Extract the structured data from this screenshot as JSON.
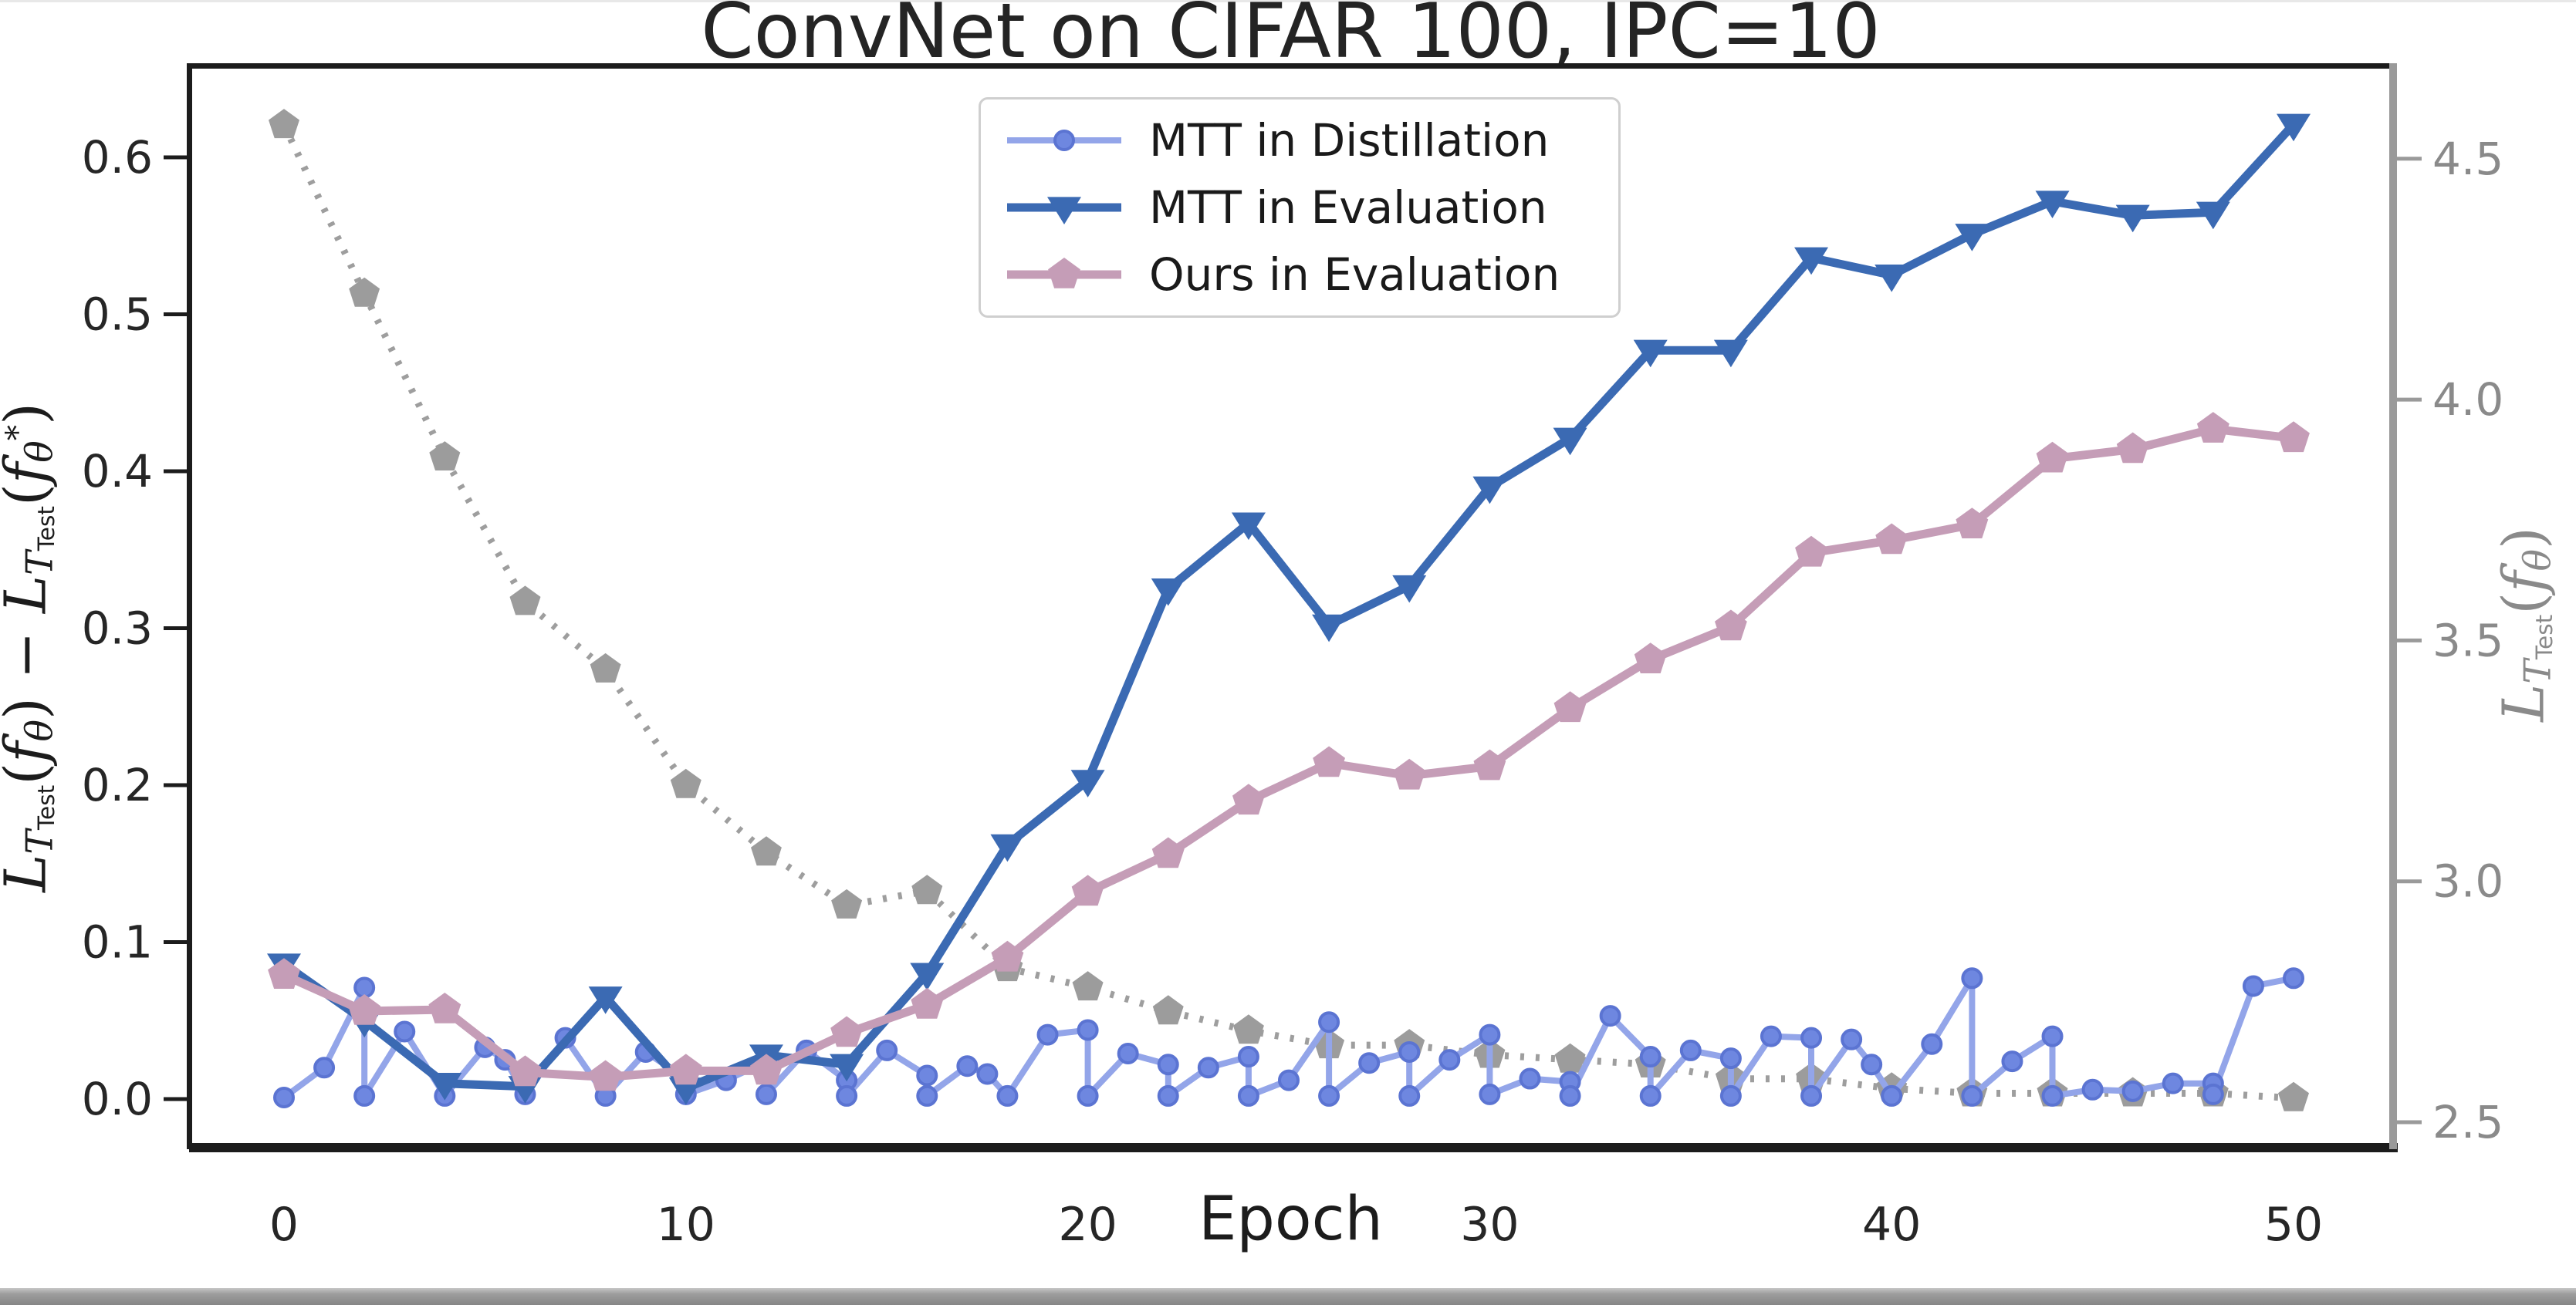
{
  "window": {
    "top_border_color": "#e8e8e8",
    "bottom_bar_colors": [
      "#c7c7c7",
      "#868686"
    ]
  },
  "chart_data": {
    "type": "line",
    "title": "ConvNet on CIFAR 100, IPC=10",
    "xlabel": "Epoch",
    "grid": false,
    "legend_position": "upper center",
    "x_ticks": {
      "values": [
        0,
        10,
        20,
        30,
        40,
        50
      ],
      "labels": [
        "0",
        "10",
        "20",
        "30",
        "40",
        "50"
      ]
    },
    "left_axis": {
      "label": "L_T_Test(f_theta) - L_T_Test(f_theta_star)",
      "tick_values": [
        0.0,
        0.1,
        0.2,
        0.3,
        0.4,
        0.5,
        0.6
      ],
      "tick_labels": [
        "0.0",
        "0.1",
        "0.2",
        "0.3",
        "0.4",
        "0.5",
        "0.6"
      ],
      "range": [
        -0.032,
        0.659
      ],
      "color": "#1c1c1c"
    },
    "right_axis": {
      "label": "L_T_Test(f_theta)",
      "tick_values": [
        2.5,
        3.0,
        3.5,
        4.0,
        4.5
      ],
      "tick_labels": [
        "2.5",
        "3.0",
        "3.5",
        "4.0",
        "4.5"
      ],
      "range": [
        2.444,
        4.694
      ],
      "color": "#8a8a8a"
    },
    "xlim": [
      -2.36,
      52.46
    ],
    "series": [
      {
        "name": "MTT in Distillation",
        "axis": "left",
        "draw_order": 1,
        "in_legend": true,
        "color": "#93a5e9",
        "line_width": 8,
        "dash": null,
        "marker": "circle",
        "marker_fill": "#6e87e0",
        "marker_edge": "#5b74d2",
        "marker_size": 12,
        "points": [
          [
            0,
            0.001
          ],
          [
            1,
            0.02
          ],
          [
            2,
            0.071
          ],
          [
            2,
            0.002
          ],
          [
            3,
            0.043
          ],
          [
            4,
            0.002
          ],
          [
            5,
            0.033
          ],
          [
            5.5,
            0.025
          ],
          [
            6,
            0.003
          ],
          [
            7,
            0.039
          ],
          [
            8,
            0.002
          ],
          [
            9,
            0.03
          ],
          [
            10,
            0.013
          ],
          [
            10,
            0.003
          ],
          [
            11,
            0.012
          ],
          [
            12,
            0.024
          ],
          [
            12,
            0.003
          ],
          [
            13,
            0.031
          ],
          [
            14,
            0.012
          ],
          [
            14,
            0.002
          ],
          [
            15,
            0.031
          ],
          [
            16,
            0.015
          ],
          [
            16,
            0.002
          ],
          [
            17,
            0.021
          ],
          [
            17.5,
            0.016
          ],
          [
            18,
            0.002
          ],
          [
            19,
            0.041
          ],
          [
            20,
            0.044
          ],
          [
            20,
            0.002
          ],
          [
            21,
            0.029
          ],
          [
            22,
            0.022
          ],
          [
            22,
            0.002
          ],
          [
            23,
            0.02
          ],
          [
            24,
            0.027
          ],
          [
            24,
            0.002
          ],
          [
            25,
            0.012
          ],
          [
            26,
            0.049
          ],
          [
            26,
            0.002
          ],
          [
            27,
            0.023
          ],
          [
            28,
            0.03
          ],
          [
            28,
            0.002
          ],
          [
            29,
            0.025
          ],
          [
            30,
            0.041
          ],
          [
            30,
            0.003
          ],
          [
            31,
            0.013
          ],
          [
            32,
            0.011
          ],
          [
            32,
            0.002
          ],
          [
            33,
            0.053
          ],
          [
            34,
            0.027
          ],
          [
            34,
            0.002
          ],
          [
            35,
            0.031
          ],
          [
            36,
            0.026
          ],
          [
            36,
            0.002
          ],
          [
            37,
            0.04
          ],
          [
            38,
            0.039
          ],
          [
            38,
            0.002
          ],
          [
            39,
            0.038
          ],
          [
            39.5,
            0.022
          ],
          [
            40,
            0.002
          ],
          [
            41,
            0.035
          ],
          [
            42,
            0.077
          ],
          [
            42,
            0.002
          ],
          [
            43,
            0.024
          ],
          [
            44,
            0.04
          ],
          [
            44,
            0.002
          ],
          [
            45,
            0.006
          ],
          [
            46,
            0.005
          ],
          [
            47,
            0.01
          ],
          [
            48,
            0.01
          ],
          [
            48,
            0.003
          ],
          [
            49,
            0.072
          ],
          [
            50,
            0.077
          ]
        ]
      },
      {
        "name": "MTT in Evaluation",
        "axis": "left",
        "draw_order": 2,
        "in_legend": true,
        "color": "#3b6ab3",
        "line_width": 11,
        "dash": null,
        "marker": "triangle-down",
        "marker_fill": "#3b6ab3",
        "marker_edge": "#3b6ab3",
        "marker_size": 22,
        "x": [
          0,
          2,
          4,
          6,
          8,
          10,
          12,
          14,
          16,
          18,
          20,
          22,
          24,
          26,
          28,
          30,
          32,
          34,
          36,
          38,
          40,
          42,
          44,
          46,
          48,
          50
        ],
        "y": [
          0.086,
          0.05,
          0.01,
          0.008,
          0.065,
          0.007,
          0.028,
          0.022,
          0.08,
          0.162,
          0.203,
          0.325,
          0.367,
          0.302,
          0.327,
          0.39,
          0.421,
          0.477,
          0.477,
          0.536,
          0.525,
          0.551,
          0.572,
          0.563,
          0.565,
          0.621
        ]
      },
      {
        "name": "Ours in Evaluation",
        "axis": "left",
        "draw_order": 3,
        "in_legend": true,
        "color": "#c59db7",
        "line_width": 11,
        "dash": null,
        "marker": "pentagon",
        "marker_fill": "#c59db7",
        "marker_edge": "#c59db7",
        "marker_size": 22,
        "x": [
          0,
          2,
          4,
          6,
          8,
          10,
          12,
          14,
          16,
          18,
          20,
          22,
          24,
          26,
          28,
          30,
          32,
          34,
          36,
          38,
          40,
          42,
          44,
          46,
          48,
          50
        ],
        "y": [
          0.079,
          0.056,
          0.057,
          0.017,
          0.014,
          0.018,
          0.018,
          0.042,
          0.06,
          0.09,
          0.132,
          0.156,
          0.19,
          0.214,
          0.206,
          0.212,
          0.249,
          0.28,
          0.301,
          0.348,
          0.356,
          0.366,
          0.408,
          0.414,
          0.427,
          0.421
        ]
      },
      {
        "name": "L_T_Test(f_theta) test loss",
        "axis": "right",
        "draw_order": 0,
        "in_legend": false,
        "color": "#9e9e9e",
        "line_width": 9,
        "dash": "5 15",
        "marker": "pentagon",
        "marker_fill": "#9c9c9c",
        "marker_edge": "#9c9c9c",
        "marker_size": 21,
        "x": [
          0,
          2,
          4,
          6,
          8,
          10,
          12,
          14,
          16,
          18,
          20,
          22,
          24,
          26,
          28,
          30,
          32,
          34,
          36,
          38,
          40,
          42,
          44,
          46,
          48,
          50
        ],
        "y": [
          4.57,
          4.22,
          3.88,
          3.58,
          3.44,
          3.2,
          3.06,
          2.95,
          2.98,
          2.82,
          2.78,
          2.73,
          2.69,
          2.66,
          2.66,
          2.64,
          2.63,
          2.62,
          2.59,
          2.59,
          2.57,
          2.56,
          2.56,
          2.56,
          2.56,
          2.55
        ]
      }
    ]
  },
  "legend": {
    "entries": [
      {
        "label": "MTT in Distillation",
        "series": "MTT in Distillation"
      },
      {
        "label": "MTT in Evaluation",
        "series": "MTT in Evaluation"
      },
      {
        "label": "Ours in Evaluation",
        "series": "Ours in Evaluation"
      }
    ]
  },
  "labels": {
    "ylabel_left": {
      "segments": [
        {
          "t": "L",
          "s": "it"
        },
        {
          "t": "T",
          "s": "cal"
        },
        {
          "t": "Test",
          "s": "subsub"
        },
        {
          "t": "(",
          "s": "rm"
        },
        {
          "t": "f",
          "s": "it"
        },
        {
          "t": "θ",
          "s": "sub"
        },
        {
          "t": ")",
          "s": "rm"
        },
        {
          "t": " − ",
          "s": "rm"
        },
        {
          "t": "L",
          "s": "it"
        },
        {
          "t": "T",
          "s": "cal"
        },
        {
          "t": "Test",
          "s": "subsub"
        },
        {
          "t": "(",
          "s": "rm"
        },
        {
          "t": "f",
          "s": "it"
        },
        {
          "t": "θ",
          "s": "sub"
        },
        {
          "t": "*",
          "s": "sup"
        },
        {
          "t": ")",
          "s": "rm"
        }
      ]
    },
    "ylabel_right": {
      "segments": [
        {
          "t": "L",
          "s": "it"
        },
        {
          "t": "T",
          "s": "cal"
        },
        {
          "t": "Test",
          "s": "subsub"
        },
        {
          "t": "(",
          "s": "rm"
        },
        {
          "t": "f",
          "s": "it"
        },
        {
          "t": "θ",
          "s": "sub"
        },
        {
          "t": ")",
          "s": "rm"
        }
      ]
    }
  }
}
